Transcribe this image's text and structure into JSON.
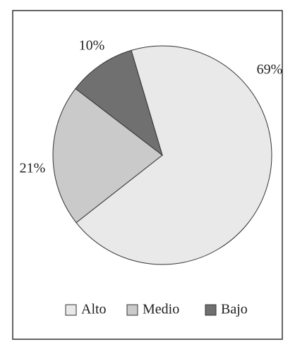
{
  "chart_data": {
    "type": "pie",
    "categories": [
      "Alto",
      "Medio",
      "Bajo"
    ],
    "values": [
      69,
      21,
      10
    ],
    "value_labels": [
      "69%",
      "21%",
      "10%"
    ],
    "colors": [
      "#e9e9e9",
      "#cacaca",
      "#707070"
    ],
    "legend": "bottom"
  }
}
